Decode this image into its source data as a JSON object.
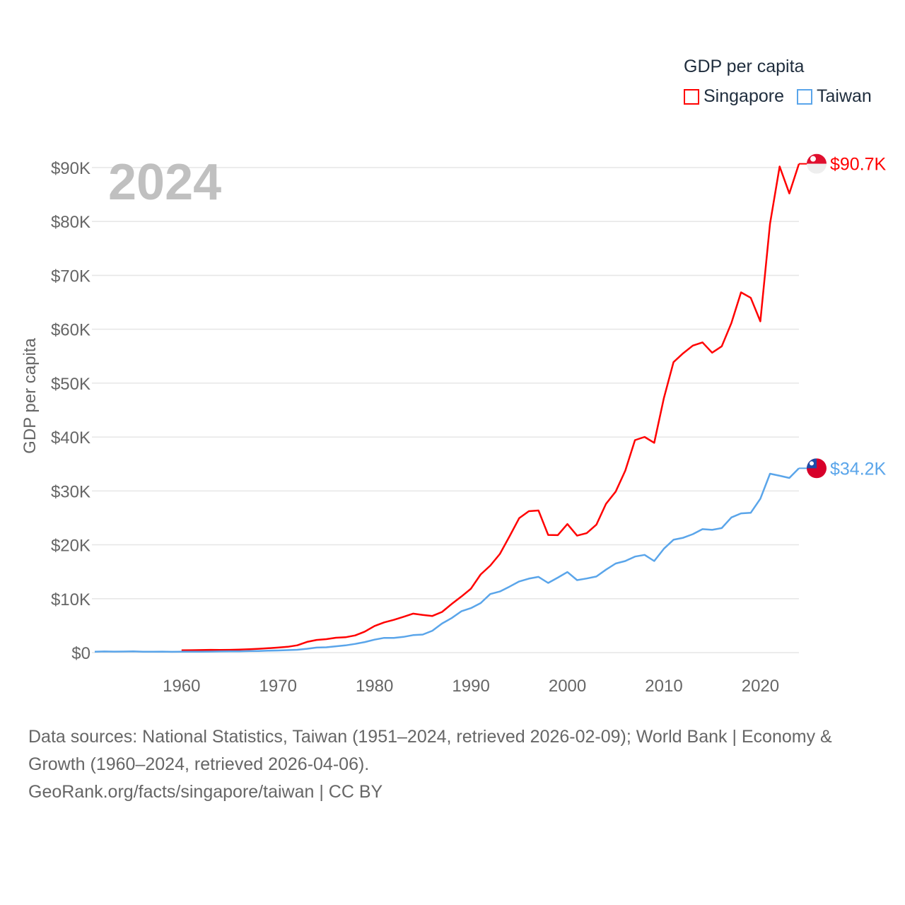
{
  "legend": {
    "title": "GDP per capita",
    "items": [
      {
        "name": "Singapore",
        "color": "#ff0000"
      },
      {
        "name": "Taiwan",
        "color": "#5aa5ea"
      }
    ]
  },
  "year_label": "2024",
  "footer": {
    "sources": "Data sources: National Statistics, Taiwan (1951–2024, retrieved 2026-02-09); World Bank | Economy & Growth (1960–2024, retrieved 2026-04-06).",
    "credit": "GeoRank.org/facts/singapore/taiwan | CC BY"
  },
  "chart_data": {
    "type": "line",
    "title": "GDP per capita",
    "xlabel": "",
    "ylabel": "GDP per capita",
    "xlim": [
      1951,
      2024
    ],
    "ylim": [
      0,
      90000
    ],
    "xticks": [
      1960,
      1970,
      1980,
      1990,
      2000,
      2010,
      2020
    ],
    "xtick_labels": [
      "1960",
      "1970",
      "1980",
      "1990",
      "2000",
      "2010",
      "2020"
    ],
    "yticks": [
      0,
      10000,
      20000,
      30000,
      40000,
      50000,
      60000,
      70000,
      80000,
      90000
    ],
    "ytick_labels": [
      "$0",
      "$10K",
      "$20K",
      "$30K",
      "$40K",
      "$50K",
      "$60K",
      "$70K",
      "$80K",
      "$90K"
    ],
    "grid": true,
    "legend_position": "top-right",
    "series": [
      {
        "name": "Singapore",
        "color": "#ff0000",
        "end_label": "$90.7K",
        "start_year": 1960,
        "values": [
          428,
          449,
          472,
          511,
          485,
          517,
          567,
          626,
          708,
          813,
          926,
          1071,
          1353,
          1985,
          2344,
          2489,
          2758,
          2846,
          3193,
          3901,
          4928,
          5596,
          6078,
          6633,
          7228,
          6994,
          6800,
          7538,
          9017,
          10394,
          11862,
          14502,
          16136,
          18302,
          21578,
          24937,
          26233,
          26376,
          21829,
          21796,
          23853,
          21700,
          22160,
          23730,
          27610,
          29870,
          33770,
          39430,
          40010,
          38930,
          47240,
          53890,
          55550,
          56970,
          57560,
          55650,
          56830,
          61160,
          66840,
          65830,
          61470,
          79600,
          90200,
          85200,
          90700
        ]
      },
      {
        "name": "Taiwan",
        "color": "#5aa5ea",
        "end_label": "$34.2K",
        "start_year": 1951,
        "values": [
          154,
          208,
          183,
          200,
          221,
          160,
          175,
          186,
          147,
          164,
          151,
          162,
          178,
          206,
          218,
          239,
          271,
          307,
          352,
          397,
          453,
          530,
          704,
          937,
          989,
          1171,
          1333,
          1613,
          1952,
          2399,
          2727,
          2718,
          2918,
          3234,
          3346,
          4048,
          5390,
          6403,
          7667,
          8258,
          9183,
          10866,
          11336,
          12243,
          13195,
          13728,
          14050,
          12918,
          13911,
          14941,
          13448,
          13750,
          14118,
          15389,
          16535,
          16992,
          17815,
          18131,
          16988,
          19278,
          20939,
          21308,
          21974,
          22902,
          22780,
          23101,
          25080,
          25838,
          25942,
          28549,
          33186,
          32811,
          32404,
          34200
        ]
      }
    ]
  }
}
